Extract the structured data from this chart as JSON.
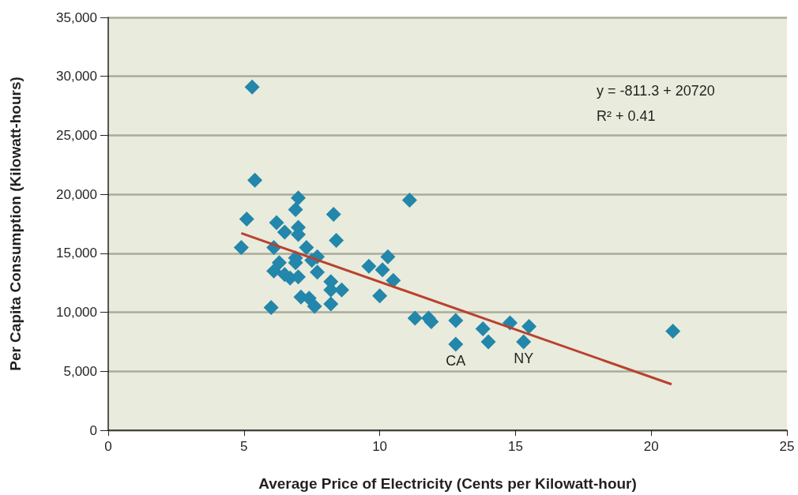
{
  "chart_data": {
    "type": "scatter",
    "xlabel": "Average Price of Electricity (Cents per Kilowatt-hour)",
    "ylabel": "Per Capita Consumption (Kilowatt-hours)",
    "xlim": [
      0,
      25
    ],
    "xticks": [
      0,
      5,
      10,
      15,
      20,
      25
    ],
    "ylim": [
      0,
      35000
    ],
    "yticks": [
      {
        "value": 0,
        "label": "0"
      },
      {
        "value": 5000,
        "label": "5,000"
      },
      {
        "value": 10000,
        "label": "10,000"
      },
      {
        "value": 15000,
        "label": "15,000"
      },
      {
        "value": 20000,
        "label": "20,000"
      },
      {
        "value": 25000,
        "label": "25,000"
      },
      {
        "value": 30000,
        "label": "30,000"
      },
      {
        "value": 35000,
        "label": "35,000"
      }
    ],
    "grid": "y",
    "marker": "diamond",
    "series": [
      {
        "color": "#2386ab",
        "x": [
          5.3,
          5.4,
          5.1,
          4.9,
          6.2,
          6.1,
          6.3,
          6.1,
          6.5,
          6.0,
          7.0,
          6.9,
          7.0,
          7.0,
          8.3,
          8.4,
          7.3,
          7.7,
          6.9,
          6.9,
          7.5,
          6.5,
          6.7,
          7.0,
          7.7,
          8.2,
          8.2,
          8.6,
          7.1,
          7.4,
          7.6,
          8.2,
          9.6,
          11.1,
          10.3,
          10.1,
          10.5,
          10.0,
          11.3,
          11.8,
          11.9,
          12.8,
          12.8,
          13.8,
          14.0,
          14.8,
          15.5,
          15.3,
          20.8
        ],
        "values": [
          29100,
          21200,
          17900,
          15500,
          17600,
          15500,
          14200,
          13500,
          16800,
          10400,
          19700,
          18700,
          17200,
          16600,
          18300,
          16100,
          15500,
          14700,
          14600,
          14200,
          14400,
          13200,
          12900,
          13000,
          13400,
          12600,
          11900,
          11900,
          11300,
          11200,
          10500,
          10700,
          13900,
          19500,
          14700,
          13600,
          12700,
          11400,
          9500,
          9500,
          9200,
          9300,
          7300,
          8600,
          7500,
          9100,
          8800,
          7500,
          8400
        ]
      },
      {
        "type": "line",
        "color": "#b9412f",
        "marker": "none",
        "line_style": "solid",
        "x": [
          4.9,
          20.75
        ],
        "values": [
          16700,
          3900
        ]
      }
    ],
    "annotations": [
      "y = -811.3 + 20720",
      "R² + 0.41",
      {
        "text": "CA",
        "x": 12.8,
        "y": 7300
      },
      {
        "text": "NY",
        "x": 15.3,
        "y": 7500
      }
    ]
  }
}
